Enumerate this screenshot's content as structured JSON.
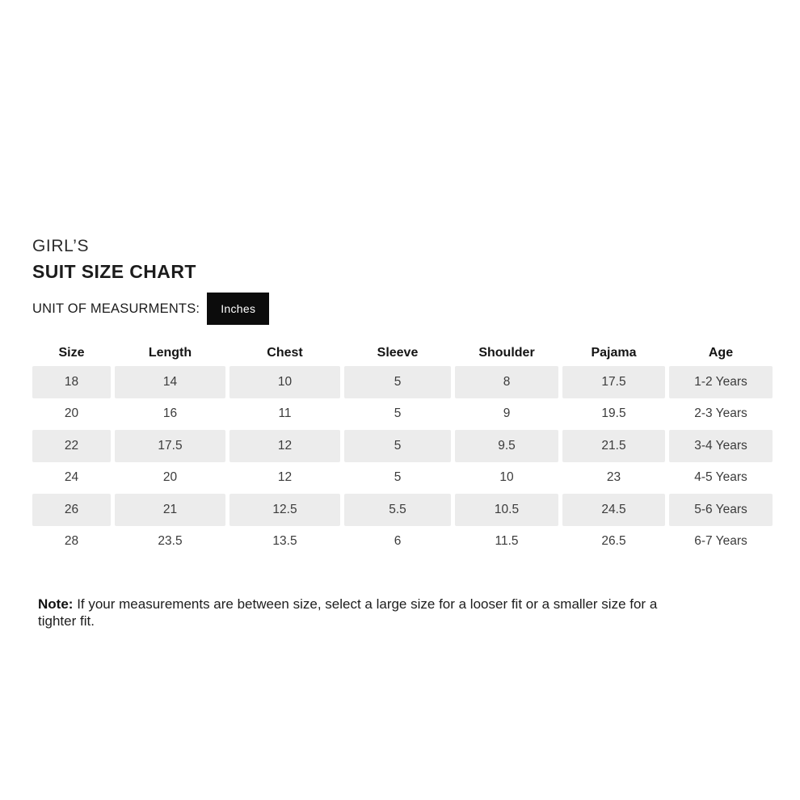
{
  "header": {
    "category": "GIRL’S",
    "title": "SUIT SIZE CHART",
    "unit_label": "UNIT OF MEASURMENTS:",
    "unit_button": "Inches"
  },
  "size_table": {
    "columns": [
      "Size",
      "Length",
      "Chest",
      "Sleeve",
      "Shoulder",
      "Pajama",
      "Age"
    ],
    "rows": [
      [
        "18",
        "14",
        "10",
        "5",
        "8",
        "17.5",
        "1-2 Years"
      ],
      [
        "20",
        "16",
        "11",
        "5",
        "9",
        "19.5",
        "2-3 Years"
      ],
      [
        "22",
        "17.5",
        "12",
        "5",
        "9.5",
        "21.5",
        "3-4 Years"
      ],
      [
        "24",
        "20",
        "12",
        "5",
        "10",
        "23",
        "4-5 Years"
      ],
      [
        "26",
        "21",
        "12.5",
        "5.5",
        "10.5",
        "24.5",
        "5-6 Years"
      ],
      [
        "28",
        "23.5",
        "13.5",
        "6",
        "11.5",
        "26.5",
        "6-7 Years"
      ]
    ]
  },
  "note": {
    "label": "Note:",
    "text": "If your measurements are between size, select a large size for a looser fit or a smaller size for a tighter fit."
  },
  "colors": {
    "stripe_row_bg": "#ececec",
    "button_bg": "#0c0c0c",
    "button_text": "#ffffff",
    "heading_text": "#1c1c1c",
    "cell_text": "#3b3b3b"
  }
}
